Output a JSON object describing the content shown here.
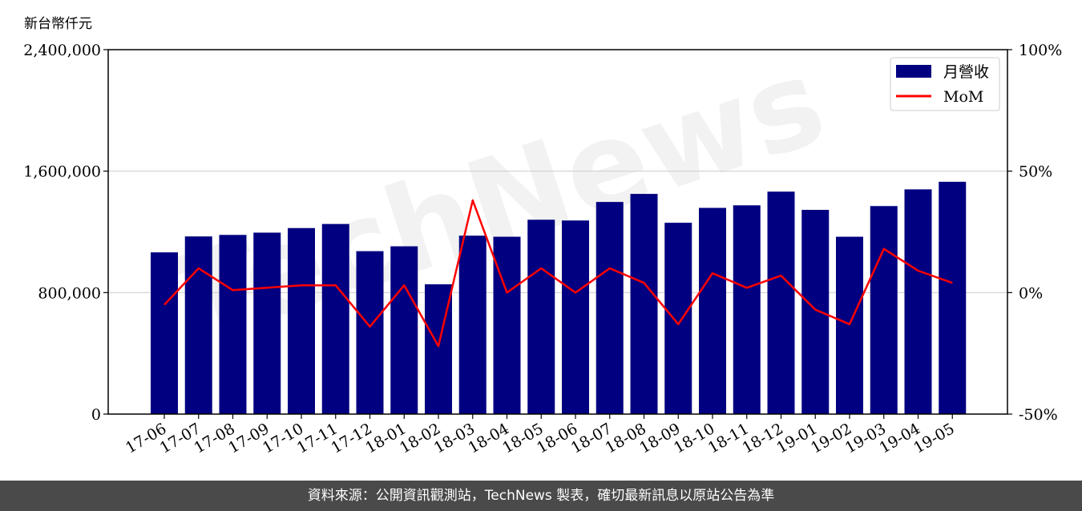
{
  "chart_data": {
    "type": "bar+line",
    "y_unit_label": "新台幣仟元",
    "categories": [
      "17-06",
      "17-07",
      "17-08",
      "17-09",
      "17-10",
      "17-11",
      "17-12",
      "18-01",
      "18-02",
      "18-03",
      "18-04",
      "18-05",
      "18-06",
      "18-07",
      "18-08",
      "18-09",
      "18-10",
      "18-11",
      "18-12",
      "19-01",
      "19-02",
      "19-03",
      "19-04",
      "19-05"
    ],
    "series": [
      {
        "name": "月營收",
        "type": "bar",
        "axis": "left",
        "color": "#000080",
        "values": [
          1065000,
          1170000,
          1180000,
          1195000,
          1225000,
          1252000,
          1073000,
          1105000,
          855000,
          1175000,
          1168000,
          1280000,
          1275000,
          1397000,
          1450000,
          1260000,
          1358000,
          1375000,
          1465000,
          1345000,
          1168000,
          1370000,
          1480000,
          1530000
        ]
      },
      {
        "name": "MoM",
        "type": "line",
        "axis": "right",
        "color": "#ff0000",
        "values": [
          -5,
          10,
          1,
          2,
          3,
          3,
          -14,
          3,
          -22,
          38,
          0,
          10,
          0,
          10,
          4,
          -13,
          8,
          2,
          7,
          -7,
          -13,
          18,
          9,
          4
        ]
      }
    ],
    "y_left": {
      "lim": [
        0,
        2400000
      ],
      "ticks": [
        0,
        800000,
        1600000,
        2400000
      ],
      "tick_labels": [
        "0",
        "800,000",
        "1,600,000",
        "2,400,000"
      ]
    },
    "y_right": {
      "lim": [
        -50,
        100
      ],
      "ticks": [
        -50,
        0,
        50,
        100
      ],
      "tick_labels": [
        "-50%",
        "0%",
        "50%",
        "100%"
      ]
    },
    "grid": "horizontal",
    "legend": {
      "position": "top-right",
      "entries": [
        "月營收",
        "MoM"
      ]
    }
  },
  "watermark": "TechNews",
  "footer": "資料來源：公開資訊觀測站，TechNews 製表，確切最新訊息以原站公告為準"
}
